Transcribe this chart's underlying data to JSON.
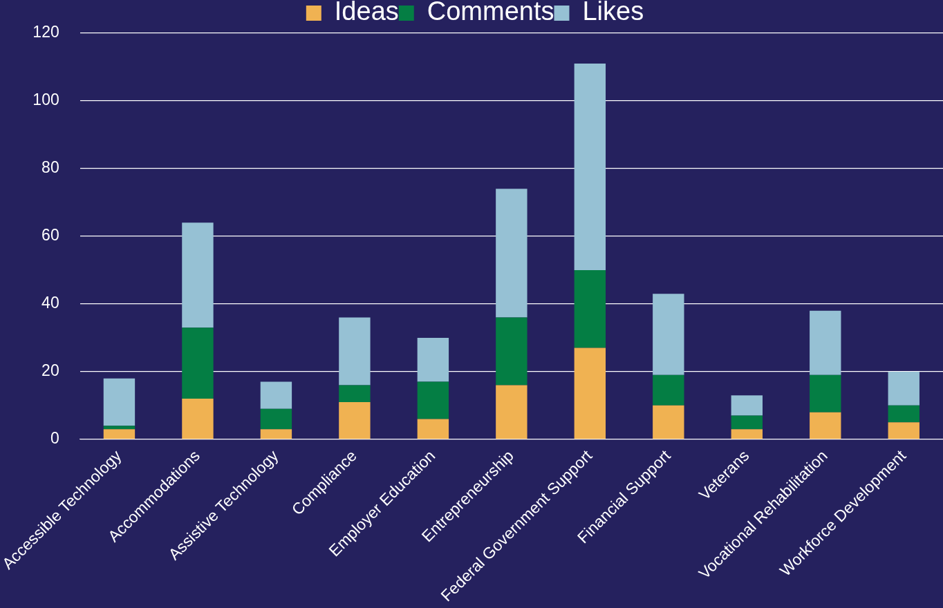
{
  "chart_data": {
    "type": "bar",
    "stacked": true,
    "categories": [
      "Accessible Technology",
      "Accommodations",
      "Assistive Technology",
      "Compliance",
      "Employer Education",
      "Entrepreneurship",
      "Federal Government Support",
      "Financial Support",
      "Veterans",
      "Vocational Rehabilitation",
      "Workforce Development"
    ],
    "series": [
      {
        "name": "Ideas",
        "color": "#f0b252",
        "values": [
          3,
          12,
          3,
          11,
          6,
          16,
          27,
          10,
          3,
          8,
          5
        ]
      },
      {
        "name": "Comments",
        "color": "#047e44",
        "values": [
          1,
          21,
          6,
          5,
          11,
          20,
          23,
          9,
          4,
          11,
          5
        ]
      },
      {
        "name": "Likes",
        "color": "#96c1d4",
        "values": [
          14,
          31,
          8,
          20,
          13,
          38,
          61,
          24,
          6,
          19,
          10
        ]
      }
    ],
    "ylim": [
      0,
      120
    ],
    "yticks": [
      0,
      20,
      40,
      60,
      80,
      100,
      120
    ],
    "grid": "y",
    "legend": "top"
  }
}
